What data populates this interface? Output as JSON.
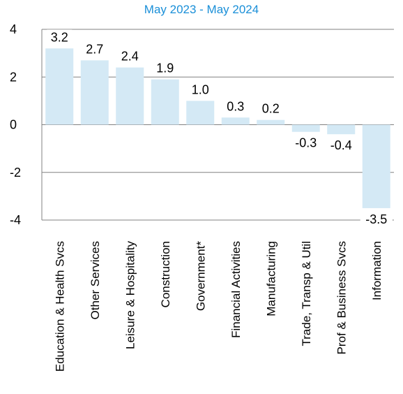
{
  "chart_data": {
    "type": "bar",
    "title": "May 2023 - May 2024",
    "xlabel": "",
    "ylabel": "",
    "ylim": [
      -4,
      4
    ],
    "yticks": [
      4,
      2,
      0,
      -2,
      -4
    ],
    "grid": true,
    "bar_color": "#d4e9f5",
    "axis_color": "#808080",
    "title_color": "#1a8fd8",
    "categories": [
      "Education & Health Svcs",
      "Other Services",
      "Leisure & Hospitality",
      "Construction",
      "Government*",
      "Financial Activities",
      "Manufacturing",
      "Trade, Transp & Util",
      "Prof & Business Svcs",
      "Information"
    ],
    "values": [
      3.2,
      2.7,
      2.4,
      1.9,
      1.0,
      0.3,
      0.2,
      -0.3,
      -0.4,
      -3.5
    ],
    "data_labels": [
      "3.2",
      "2.7",
      "2.4",
      "1.9",
      "1.0",
      "0.3",
      "0.2",
      "-0.3",
      "-0.4",
      "-3.5"
    ]
  }
}
